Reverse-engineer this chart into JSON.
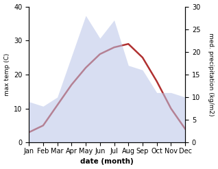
{
  "months": [
    "Jan",
    "Feb",
    "Mar",
    "Apr",
    "May",
    "Jun",
    "Jul",
    "Aug",
    "Sep",
    "Oct",
    "Nov",
    "Dec"
  ],
  "max_temp": [
    3,
    5,
    11,
    17,
    22,
    26,
    28,
    29,
    25,
    18,
    10,
    4
  ],
  "precipitation": [
    9,
    8,
    10,
    19,
    28,
    23,
    27,
    17,
    16,
    11,
    11,
    10
  ],
  "temp_color": "#b03030",
  "precip_color": "#b8c4e8",
  "left_ylim": [
    0,
    40
  ],
  "right_ylim": [
    0,
    30
  ],
  "left_yticks": [
    0,
    10,
    20,
    30,
    40
  ],
  "right_yticks": [
    0,
    5,
    10,
    15,
    20,
    25,
    30
  ],
  "xlabel": "date (month)",
  "ylabel_left": "max temp (C)",
  "ylabel_right": "med. precipitation (kg/m2)",
  "background_color": "#ffffff",
  "temp_linewidth": 1.8,
  "precip_alpha": 0.55
}
